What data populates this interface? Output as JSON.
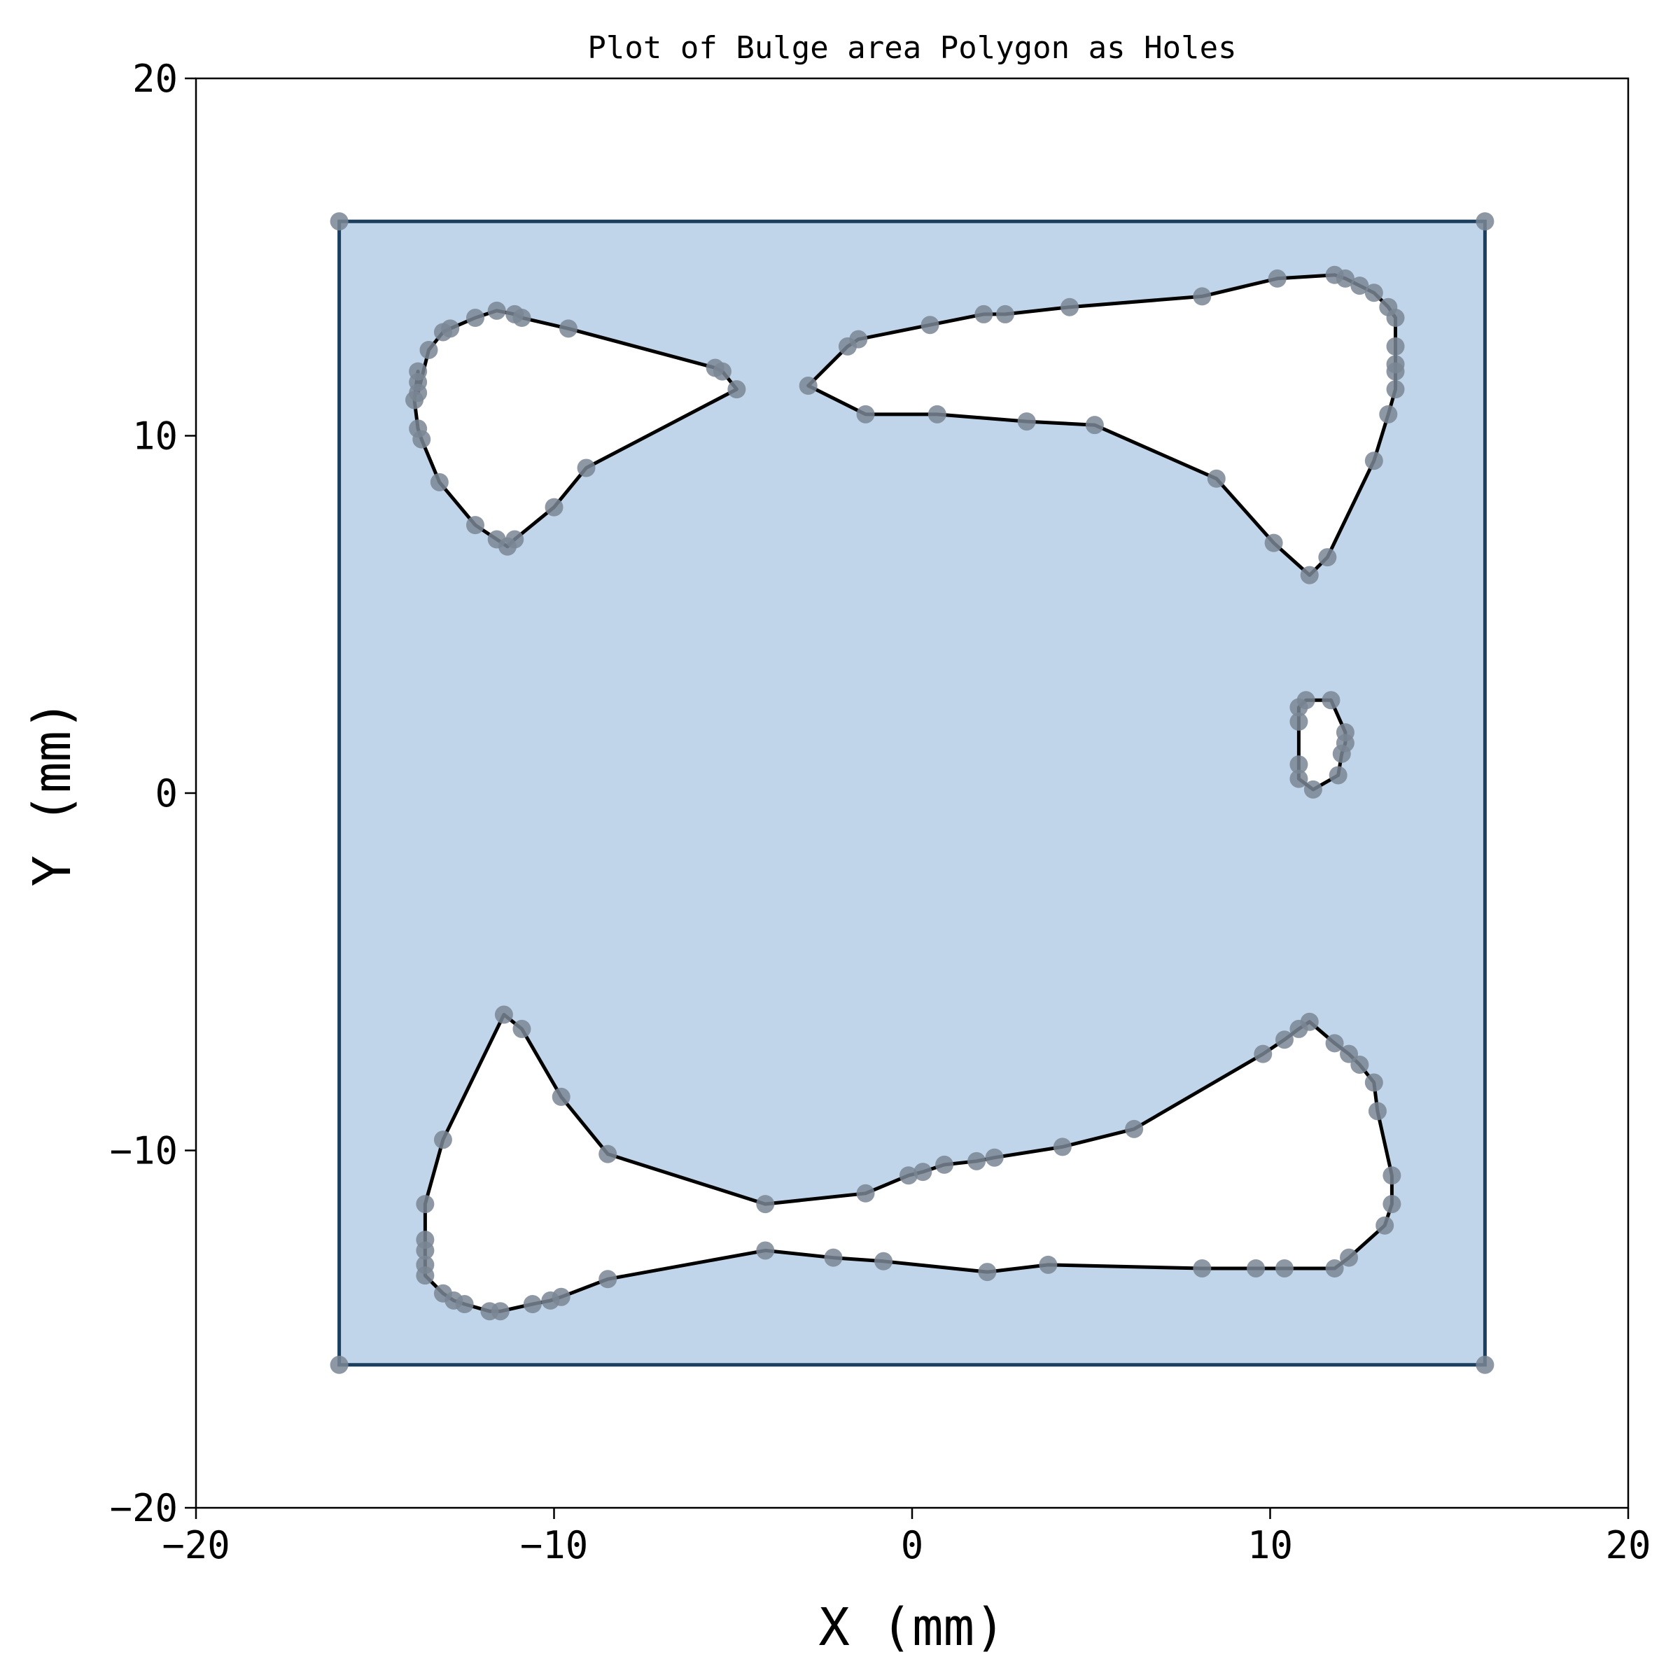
{
  "chart_data": {
    "type": "scatter",
    "title": "Plot of Bulge area Polygon as Holes",
    "xlabel": "X (mm)",
    "ylabel": "Y (mm)",
    "xlim": [
      -20,
      20
    ],
    "ylim": [
      -20,
      20
    ],
    "x_ticks": [
      "−20",
      "−10",
      "0",
      "10",
      "20"
    ],
    "y_ticks": [
      "−20",
      "−10",
      "0",
      "10",
      "20"
    ],
    "grid": false,
    "colors": {
      "fill": "#c1d5ea",
      "outline": "#000000",
      "border": "#1c3f60",
      "points": "#7a8694"
    },
    "outer_polygon": [
      [
        -16,
        16
      ],
      [
        16,
        16
      ],
      [
        16,
        -16
      ],
      [
        -16,
        -16
      ]
    ],
    "holes": [
      {
        "points": [
          [
            -13.8,
            11.8
          ],
          [
            -13.8,
            11.5
          ],
          [
            -13.8,
            11.2
          ],
          [
            -13.5,
            12.4
          ],
          [
            -13.1,
            12.9
          ],
          [
            -12.9,
            13.0
          ],
          [
            -12.2,
            13.3
          ],
          [
            -11.6,
            13.5
          ],
          [
            -11.1,
            13.4
          ],
          [
            -10.9,
            13.3
          ],
          [
            -9.6,
            13.0
          ],
          [
            -5.5,
            11.9
          ],
          [
            -5.3,
            11.8
          ],
          [
            -4.9,
            11.3
          ],
          [
            -9.1,
            9.1
          ],
          [
            -10.0,
            8.0
          ],
          [
            -11.1,
            7.1
          ],
          [
            -11.3,
            6.9
          ],
          [
            -11.6,
            7.1
          ],
          [
            -12.2,
            7.5
          ],
          [
            -13.2,
            8.7
          ],
          [
            -13.7,
            9.9
          ],
          [
            -13.8,
            10.2
          ],
          [
            -13.9,
            11.0
          ]
        ]
      },
      {
        "points": [
          [
            -2.9,
            11.4
          ],
          [
            -1.8,
            12.5
          ],
          [
            -1.5,
            12.7
          ],
          [
            0.5,
            13.1
          ],
          [
            2.0,
            13.4
          ],
          [
            2.6,
            13.4
          ],
          [
            4.4,
            13.6
          ],
          [
            8.1,
            13.9
          ],
          [
            10.2,
            14.4
          ],
          [
            11.8,
            14.5
          ],
          [
            12.1,
            14.4
          ],
          [
            12.5,
            14.2
          ],
          [
            12.9,
            14.0
          ],
          [
            13.3,
            13.6
          ],
          [
            13.5,
            13.3
          ],
          [
            13.5,
            12.5
          ],
          [
            13.5,
            12.0
          ],
          [
            13.5,
            11.8
          ],
          [
            13.5,
            11.3
          ],
          [
            13.3,
            10.6
          ],
          [
            12.9,
            9.3
          ],
          [
            11.6,
            6.6
          ],
          [
            11.1,
            6.1
          ],
          [
            10.1,
            7.0
          ],
          [
            8.5,
            8.8
          ],
          [
            5.1,
            10.3
          ],
          [
            3.2,
            10.4
          ],
          [
            0.7,
            10.6
          ],
          [
            -1.3,
            10.6
          ]
        ]
      },
      {
        "points": [
          [
            10.8,
            2.4
          ],
          [
            11.0,
            2.6
          ],
          [
            11.7,
            2.6
          ],
          [
            12.1,
            1.7
          ],
          [
            12.1,
            1.4
          ],
          [
            12.0,
            1.1
          ],
          [
            11.9,
            0.5
          ],
          [
            11.2,
            0.1
          ],
          [
            10.8,
            0.4
          ],
          [
            10.8,
            0.8
          ],
          [
            10.8,
            2.0
          ]
        ]
      },
      {
        "points": [
          [
            -11.4,
            -6.2
          ],
          [
            -10.9,
            -6.6
          ],
          [
            -9.8,
            -8.5
          ],
          [
            -8.5,
            -10.1
          ],
          [
            -4.1,
            -11.5
          ],
          [
            -1.3,
            -11.2
          ],
          [
            -0.1,
            -10.7
          ],
          [
            0.3,
            -10.6
          ],
          [
            0.9,
            -10.4
          ],
          [
            1.8,
            -10.3
          ],
          [
            2.3,
            -10.2
          ],
          [
            4.2,
            -9.9
          ],
          [
            6.2,
            -9.4
          ],
          [
            9.8,
            -7.3
          ],
          [
            10.4,
            -6.9
          ],
          [
            10.8,
            -6.6
          ],
          [
            11.1,
            -6.4
          ],
          [
            11.8,
            -7.0
          ],
          [
            12.2,
            -7.3
          ],
          [
            12.5,
            -7.6
          ],
          [
            12.9,
            -8.1
          ],
          [
            13.0,
            -8.9
          ],
          [
            13.4,
            -10.7
          ],
          [
            13.4,
            -11.5
          ],
          [
            13.2,
            -12.1
          ],
          [
            12.2,
            -13.0
          ],
          [
            11.8,
            -13.3
          ],
          [
            10.4,
            -13.3
          ],
          [
            9.6,
            -13.3
          ],
          [
            8.1,
            -13.3
          ],
          [
            3.8,
            -13.2
          ],
          [
            2.1,
            -13.4
          ],
          [
            -0.8,
            -13.1
          ],
          [
            -2.2,
            -13.0
          ],
          [
            -4.1,
            -12.8
          ],
          [
            -8.5,
            -13.6
          ],
          [
            -9.8,
            -14.1
          ],
          [
            -10.1,
            -14.2
          ],
          [
            -10.6,
            -14.3
          ],
          [
            -11.5,
            -14.5
          ],
          [
            -11.8,
            -14.5
          ],
          [
            -12.5,
            -14.3
          ],
          [
            -12.8,
            -14.2
          ],
          [
            -13.1,
            -14.0
          ],
          [
            -13.6,
            -13.5
          ],
          [
            -13.6,
            -13.2
          ],
          [
            -13.6,
            -12.8
          ],
          [
            -13.6,
            -12.5
          ],
          [
            -13.6,
            -11.5
          ],
          [
            -13.1,
            -9.7
          ]
        ]
      }
    ]
  }
}
